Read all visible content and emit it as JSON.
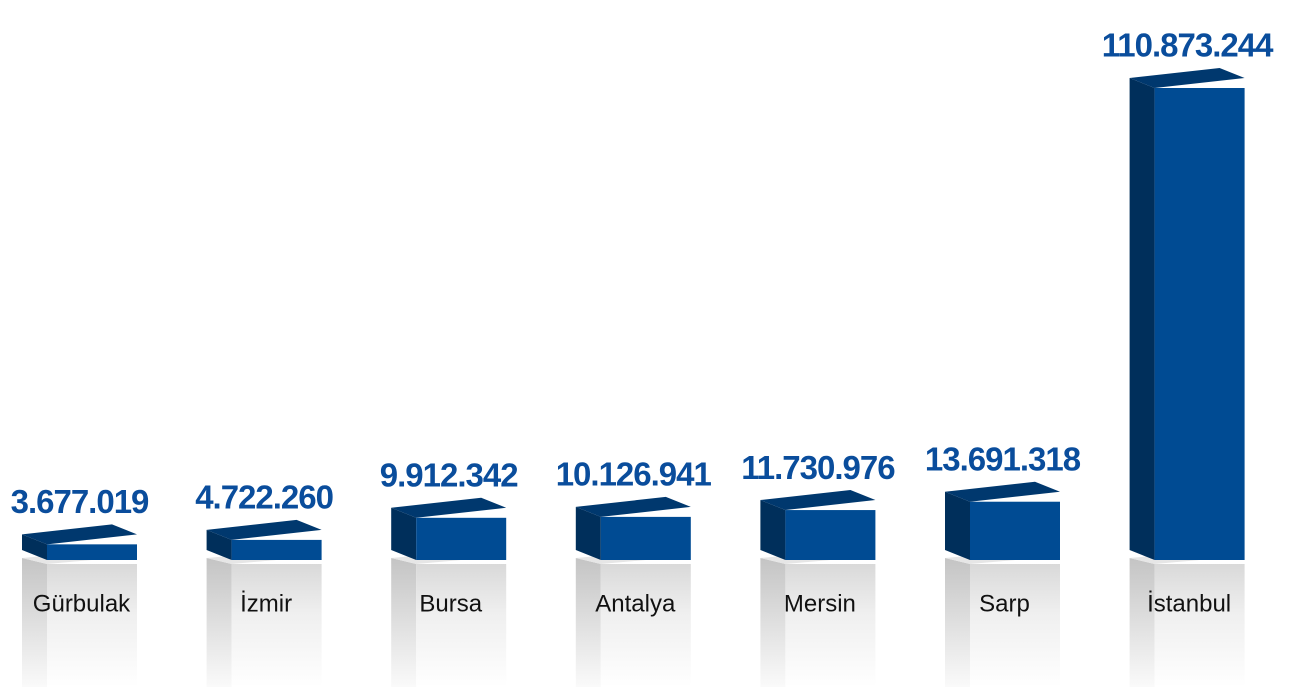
{
  "chart_data": {
    "type": "bar3d",
    "categories": [
      "Gürbulak",
      "İzmir",
      "Bursa",
      "Antalya",
      "Mersin",
      "Sarp",
      "İstanbul"
    ],
    "values": [
      3677019,
      4722260,
      9912342,
      10126941,
      11730976,
      13691318,
      110873244
    ],
    "value_labels": [
      "3.677.019",
      "4.722.260",
      "9.912.342",
      "10.126.941",
      "11.730.976",
      "13.691.318",
      "110.873.244"
    ],
    "color": "#004b93"
  }
}
